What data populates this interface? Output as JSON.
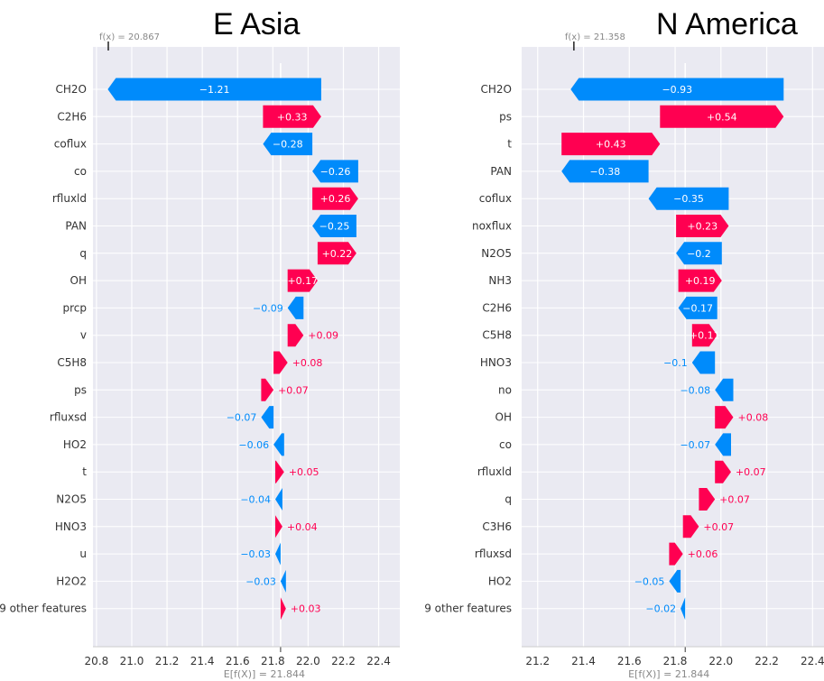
{
  "colors": {
    "positive": "#ff0051",
    "negative": "#008bfb",
    "plot_bg": "#eaeaf2",
    "grid": "#ffffff",
    "label_text": "#333333",
    "muted_text": "#888888"
  },
  "chart_data": [
    {
      "type": "waterfall",
      "title": "E Asia",
      "fx_label": "f(x) = 20.867",
      "fx": 20.867,
      "base_label": "E[f(X)] = 21.844",
      "base": 21.844,
      "xlim": [
        20.78,
        22.52
      ],
      "xticks": [
        "20.8",
        "21.0",
        "21.2",
        "21.4",
        "21.6",
        "21.8",
        "22.0",
        "22.2",
        "22.4"
      ],
      "grid": true,
      "rows": [
        {
          "feature": "CH2O",
          "value": -1.21,
          "label": "−1.21"
        },
        {
          "feature": "C2H6",
          "value": 0.33,
          "label": "+0.33"
        },
        {
          "feature": "coflux",
          "value": -0.28,
          "label": "−0.28"
        },
        {
          "feature": "co",
          "value": -0.26,
          "label": "−0.26"
        },
        {
          "feature": "rfluxld",
          "value": 0.26,
          "label": "+0.26"
        },
        {
          "feature": "PAN",
          "value": -0.25,
          "label": "−0.25"
        },
        {
          "feature": "q",
          "value": 0.22,
          "label": "+0.22"
        },
        {
          "feature": "OH",
          "value": 0.17,
          "label": "+0.17"
        },
        {
          "feature": "prcp",
          "value": -0.09,
          "label": "−0.09"
        },
        {
          "feature": "v",
          "value": 0.09,
          "label": "+0.09"
        },
        {
          "feature": "C5H8",
          "value": 0.08,
          "label": "+0.08"
        },
        {
          "feature": "ps",
          "value": 0.07,
          "label": "+0.07"
        },
        {
          "feature": "rfluxsd",
          "value": -0.07,
          "label": "−0.07"
        },
        {
          "feature": "HO2",
          "value": -0.06,
          "label": "−0.06"
        },
        {
          "feature": "t",
          "value": 0.05,
          "label": "+0.05"
        },
        {
          "feature": "N2O5",
          "value": -0.04,
          "label": "−0.04"
        },
        {
          "feature": "HNO3",
          "value": 0.04,
          "label": "+0.04"
        },
        {
          "feature": "u",
          "value": -0.03,
          "label": "−0.03"
        },
        {
          "feature": "H2O2",
          "value": -0.03,
          "label": "−0.03"
        },
        {
          "feature": "9 other features",
          "value": 0.03,
          "label": "+0.03"
        }
      ]
    },
    {
      "type": "waterfall",
      "title": "N America",
      "fx_label": "f(x) = 21.358",
      "fx": 21.358,
      "base_label": "E[f(X)] = 21.844",
      "base": 21.844,
      "xlim": [
        21.13,
        22.45
      ],
      "xticks": [
        "21.2",
        "21.4",
        "21.6",
        "21.8",
        "22.0",
        "22.2",
        "22.4"
      ],
      "grid": true,
      "rows": [
        {
          "feature": "CH2O",
          "value": -0.93,
          "label": "−0.93"
        },
        {
          "feature": "ps",
          "value": 0.54,
          "label": "+0.54"
        },
        {
          "feature": "t",
          "value": 0.43,
          "label": "+0.43"
        },
        {
          "feature": "PAN",
          "value": -0.38,
          "label": "−0.38"
        },
        {
          "feature": "coflux",
          "value": -0.35,
          "label": "−0.35"
        },
        {
          "feature": "noxflux",
          "value": 0.23,
          "label": "+0.23"
        },
        {
          "feature": "N2O5",
          "value": -0.2,
          "label": "−0.2"
        },
        {
          "feature": "NH3",
          "value": 0.19,
          "label": "+0.19"
        },
        {
          "feature": "C2H6",
          "value": -0.17,
          "label": "−0.17"
        },
        {
          "feature": "C5H8",
          "value": 0.11,
          "label": "+0.11"
        },
        {
          "feature": "HNO3",
          "value": -0.1,
          "label": "−0.1"
        },
        {
          "feature": "no",
          "value": -0.08,
          "label": "−0.08"
        },
        {
          "feature": "OH",
          "value": 0.08,
          "label": "+0.08"
        },
        {
          "feature": "co",
          "value": -0.07,
          "label": "−0.07"
        },
        {
          "feature": "rfluxld",
          "value": 0.07,
          "label": "+0.07"
        },
        {
          "feature": "q",
          "value": 0.07,
          "label": "+0.07"
        },
        {
          "feature": "C3H6",
          "value": 0.07,
          "label": "+0.07"
        },
        {
          "feature": "rfluxsd",
          "value": 0.06,
          "label": "+0.06"
        },
        {
          "feature": "HO2",
          "value": -0.05,
          "label": "−0.05"
        },
        {
          "feature": "9 other features",
          "value": -0.02,
          "label": "−0.02"
        }
      ]
    }
  ]
}
